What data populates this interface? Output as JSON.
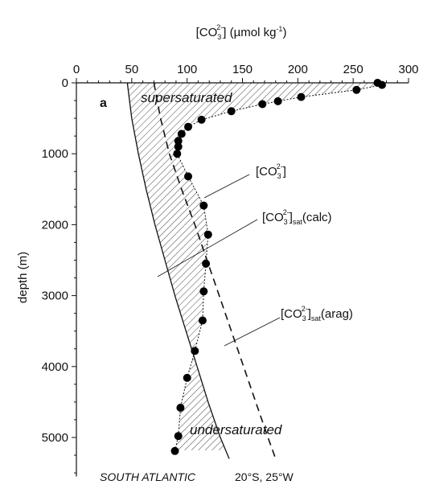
{
  "chart_data": {
    "type": "line",
    "xlabel_main": "[CO",
    "xlabel_sub": "3",
    "xlabel_sup": "2-",
    "xlabel_rest": "] (µmol kg",
    "xlabel_exp": "-1",
    "xlabel_close": ")",
    "ylabel": "depth (m)",
    "xlim": [
      0,
      300
    ],
    "ylim": [
      5500,
      0
    ],
    "x_ticks": [
      0,
      50,
      100,
      150,
      200,
      250,
      300
    ],
    "y_ticks": [
      0,
      1000,
      2000,
      3000,
      4000,
      5000
    ],
    "panel_label": "a",
    "region_super": "supersaturated",
    "region_under": "undersaturated",
    "location_name": "SOUTH ATLANTIC",
    "location_coords": "20°S, 25°W",
    "series": [
      {
        "name_base": "[CO",
        "name_sub": "3",
        "name_sup": "2-",
        "name_tail": "]",
        "style": "dotted",
        "points": [
          [
            272,
            0
          ],
          [
            276,
            30
          ],
          [
            253,
            100
          ],
          [
            203,
            200
          ],
          [
            182,
            260
          ],
          [
            168,
            300
          ],
          [
            140,
            400
          ],
          [
            113,
            520
          ],
          [
            101,
            620
          ],
          [
            95,
            720
          ],
          [
            92,
            820
          ],
          [
            92,
            900
          ],
          [
            91,
            1000
          ],
          [
            101,
            1320
          ],
          [
            115,
            1730
          ],
          [
            119,
            2140
          ],
          [
            117,
            2550
          ],
          [
            115,
            2940
          ],
          [
            114,
            3350
          ],
          [
            107,
            3780
          ],
          [
            100,
            4160
          ],
          [
            94,
            4580
          ],
          [
            92,
            4980
          ],
          [
            89,
            5190
          ]
        ]
      },
      {
        "name_base": "[CO",
        "name_sub": "3",
        "name_sup": "2-",
        "name_tail": "]",
        "name_satsub": "sat",
        "name_kind": "(calc)",
        "style": "solid",
        "line": [
          [
            46,
            0
          ],
          [
            50,
            500
          ],
          [
            56,
            1000
          ],
          [
            63,
            1500
          ],
          [
            71,
            2000
          ],
          [
            80,
            2500
          ],
          [
            89,
            3000
          ],
          [
            99,
            3500
          ],
          [
            109,
            4000
          ],
          [
            119,
            4500
          ],
          [
            130,
            5000
          ],
          [
            138,
            5300
          ]
        ]
      },
      {
        "name_base": "[CO",
        "name_sub": "3",
        "name_sup": "2-",
        "name_tail": "]",
        "name_satsub": "sat",
        "name_kind": "(arag)",
        "style": "dashed",
        "line": [
          [
            70,
            0
          ],
          [
            76,
            500
          ],
          [
            84,
            1000
          ],
          [
            95,
            1500
          ],
          [
            107,
            2000
          ],
          [
            118,
            2500
          ],
          [
            129,
            3000
          ],
          [
            140,
            3500
          ],
          [
            151,
            4000
          ],
          [
            162,
            4500
          ],
          [
            173,
            5000
          ],
          [
            180,
            5300
          ]
        ]
      }
    ]
  }
}
